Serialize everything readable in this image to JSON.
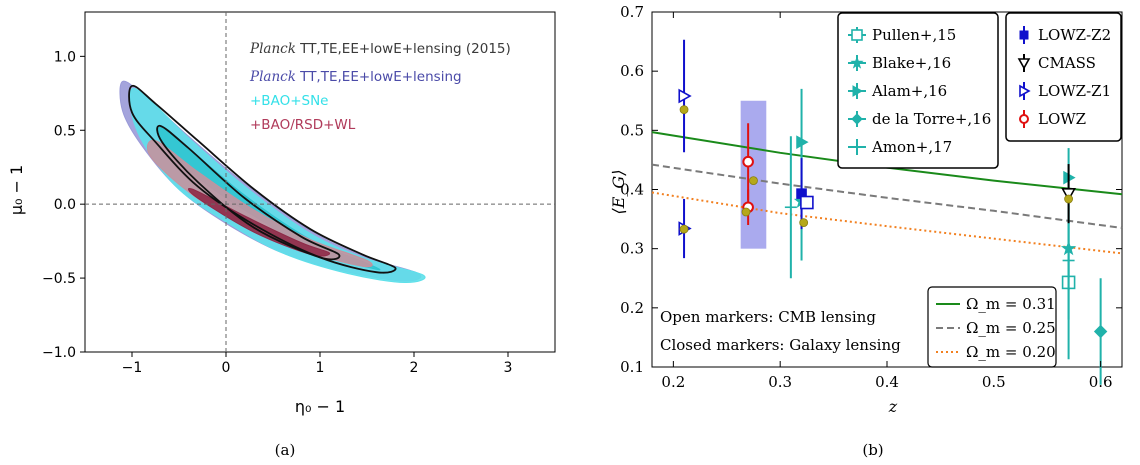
{
  "chart_data": [
    {
      "type": "contour",
      "panel_label": "(a)",
      "xlabel": "η₀ − 1",
      "ylabel": "μ₀ − 1",
      "xlim": [
        -1.5,
        3.5
      ],
      "ylim": [
        -1.0,
        1.3
      ],
      "xticks": [
        "−1",
        "0",
        "1",
        "2",
        "3"
      ],
      "yticks": [
        "−1.0",
        "−0.5",
        "0.0",
        "0.5",
        "1.0"
      ],
      "reference_lines": {
        "x": 0,
        "y": 0
      },
      "legend": [
        {
          "name_italic": "Planck",
          "name": " TT,TE,EE+lowE+lensing (2015)",
          "color": "#3a3a3a"
        },
        {
          "name_italic": "Planck",
          "name": " TT,TE,EE+lowE+lensing",
          "color": "#4b4ba8"
        },
        {
          "name": "+BAO+SNe",
          "color": "#33e0e8"
        },
        {
          "name": "+BAO/RSD+WL",
          "color": "#b03a5a"
        }
      ],
      "series": [
        {
          "name": "Planck TT,TE,EE+lowE+lensing",
          "color": "#9a9ad8",
          "level": "95%",
          "contour": [
            [
              -1.1,
              0.83
            ],
            [
              -0.85,
              0.72
            ],
            [
              -0.4,
              0.46
            ],
            [
              0.2,
              0.14
            ],
            [
              0.9,
              -0.18
            ],
            [
              1.5,
              -0.36
            ],
            [
              2.05,
              -0.47
            ],
            [
              1.9,
              -0.52
            ],
            [
              1.3,
              -0.46
            ],
            [
              0.6,
              -0.33
            ],
            [
              0.0,
              -0.13
            ],
            [
              -0.5,
              0.1
            ],
            [
              -0.9,
              0.4
            ],
            [
              -1.1,
              0.63
            ]
          ]
        },
        {
          "name": "+BAO+SNe",
          "color": "#5ee0ea",
          "level": "95%",
          "contour": [
            [
              -1.0,
              0.78
            ],
            [
              -0.8,
              0.7
            ],
            [
              -0.4,
              0.45
            ],
            [
              0.2,
              0.12
            ],
            [
              0.9,
              -0.2
            ],
            [
              1.5,
              -0.37
            ],
            [
              2.1,
              -0.48
            ],
            [
              1.9,
              -0.53
            ],
            [
              1.3,
              -0.47
            ],
            [
              0.6,
              -0.33
            ],
            [
              0.0,
              -0.12
            ],
            [
              -0.5,
              0.1
            ],
            [
              -0.85,
              0.38
            ],
            [
              -1.0,
              0.6
            ]
          ]
        },
        {
          "name": "+BAO+SNe",
          "color": "#2fc4d0",
          "level": "68%",
          "contour": [
            [
              -0.7,
              0.52
            ],
            [
              -0.4,
              0.38
            ],
            [
              0.2,
              0.06
            ],
            [
              0.9,
              -0.24
            ],
            [
              1.5,
              -0.4
            ],
            [
              1.6,
              -0.44
            ],
            [
              1.0,
              -0.33
            ],
            [
              0.3,
              -0.08
            ],
            [
              -0.3,
              0.18
            ],
            [
              -0.65,
              0.4
            ]
          ]
        },
        {
          "name": "+BAO/RSD+WL",
          "color": "#c4929e",
          "level": "95%",
          "contour": [
            [
              -0.75,
              0.43
            ],
            [
              -0.3,
              0.22
            ],
            [
              0.3,
              -0.04
            ],
            [
              0.9,
              -0.24
            ],
            [
              1.5,
              -0.38
            ],
            [
              1.45,
              -0.42
            ],
            [
              0.8,
              -0.31
            ],
            [
              0.2,
              -0.14
            ],
            [
              -0.35,
              0.06
            ],
            [
              -0.8,
              0.32
            ]
          ]
        },
        {
          "name": "+BAO/RSD+WL",
          "color": "#8e2a48",
          "level": "68%",
          "contour": [
            [
              -0.35,
              0.1
            ],
            [
              0.2,
              -0.08
            ],
            [
              0.8,
              -0.26
            ],
            [
              1.1,
              -0.33
            ],
            [
              0.9,
              -0.34
            ],
            [
              0.3,
              -0.19
            ],
            [
              -0.3,
              0.04
            ]
          ]
        },
        {
          "name": "Planck TT,TE,EE+lowE+lensing (2015)",
          "color": "#111111",
          "level": "95%",
          "contour": [
            [
              -1.0,
              0.8
            ],
            [
              -0.75,
              0.68
            ],
            [
              -0.3,
              0.43
            ],
            [
              0.3,
              0.1
            ],
            [
              0.9,
              -0.17
            ],
            [
              1.45,
              -0.34
            ],
            [
              1.8,
              -0.43
            ],
            [
              1.6,
              -0.46
            ],
            [
              1.0,
              -0.36
            ],
            [
              0.3,
              -0.14
            ],
            [
              -0.3,
              0.12
            ],
            [
              -0.75,
              0.42
            ],
            [
              -1.0,
              0.62
            ]
          ]
        },
        {
          "name": "Planck TT,TE,EE+lowE+lensing (2015)",
          "color": "#111111",
          "level": "68%",
          "contour": [
            [
              -0.7,
              0.53
            ],
            [
              -0.4,
              0.38
            ],
            [
              0.2,
              0.04
            ],
            [
              0.8,
              -0.22
            ],
            [
              1.2,
              -0.34
            ],
            [
              1.0,
              -0.36
            ],
            [
              0.3,
              -0.16
            ],
            [
              -0.3,
              0.15
            ],
            [
              -0.68,
              0.42
            ]
          ]
        }
      ]
    },
    {
      "type": "scatter",
      "panel_label": "(b)",
      "xlabel": "z",
      "ylabel": "⟨E_G⟩",
      "xlim": [
        0.18,
        0.62
      ],
      "ylim": [
        0.1,
        0.7
      ],
      "xticks": [
        0.2,
        0.3,
        0.4,
        0.5,
        0.6
      ],
      "yticks": [
        0.1,
        0.2,
        0.3,
        0.4,
        0.5,
        0.6,
        0.7
      ],
      "band": {
        "x": [
          0.263,
          0.287
        ],
        "y": [
          0.3,
          0.55
        ],
        "color": "#aaaaee"
      },
      "theory_lines": [
        {
          "name": "Ω_m = 0.31",
          "style": "solid",
          "color": "#1a8a1a",
          "x": [
            0.18,
            0.3,
            0.4,
            0.5,
            0.62
          ],
          "y": [
            0.497,
            0.462,
            0.437,
            0.415,
            0.392
          ]
        },
        {
          "name": "Ω_m = 0.25",
          "style": "dashed",
          "color": "#7a7a7a",
          "x": [
            0.18,
            0.3,
            0.4,
            0.5,
            0.62
          ],
          "y": [
            0.442,
            0.41,
            0.386,
            0.364,
            0.335
          ]
        },
        {
          "name": "Ω_m = 0.20",
          "style": "dotted",
          "color": "#f28020",
          "x": [
            0.18,
            0.3,
            0.4,
            0.5,
            0.62
          ],
          "y": [
            0.395,
            0.36,
            0.338,
            0.317,
            0.292
          ]
        }
      ],
      "series": [
        {
          "name": "Pullen+,15",
          "marker": "square-open",
          "color": "#20b2aa",
          "points": [
            [
              0.57,
              0.243,
              0.13
            ]
          ]
        },
        {
          "name": "Blake+,16",
          "marker": "star",
          "color": "#20b2aa",
          "points": [
            [
              0.32,
              0.38,
              0.1
            ],
            [
              0.57,
              0.3,
              0.07
            ]
          ]
        },
        {
          "name": "Alam+,16",
          "marker": "tri-right",
          "color": "#20b2aa",
          "points": [
            [
              0.32,
              0.48,
              0.09
            ],
            [
              0.57,
              0.42,
              0.05
            ]
          ]
        },
        {
          "name": "de la Torre+,16",
          "marker": "diamond",
          "color": "#20b2aa",
          "points": [
            [
              0.6,
              0.16,
              0.09
            ]
          ]
        },
        {
          "name": "Amon+,17",
          "marker": "tick",
          "color": "#20b2aa",
          "points": [
            [
              0.31,
              0.37,
              0.12
            ],
            [
              0.57,
              0.28,
              0.1
            ]
          ]
        },
        {
          "name": "LOWZ-Z2",
          "marker": "square",
          "color": "#1010cc",
          "points": [
            [
              0.32,
              0.393,
              0.06
            ]
          ]
        },
        {
          "name": "CMASS",
          "marker": "triangle-down-open",
          "color": "#000000",
          "points": [
            [
              0.57,
              0.393,
              0.05
            ]
          ]
        },
        {
          "name": "LOWZ-Z1",
          "marker": "tri-right-open",
          "color": "#1010cc",
          "points": [
            [
              0.21,
              0.558,
              0.095
            ],
            [
              0.21,
              0.334,
              0.05
            ]
          ]
        },
        {
          "name": "LOWZ",
          "marker": "circle",
          "color": "#e01010",
          "points": [
            [
              0.27,
              0.447,
              0.065
            ],
            [
              0.27,
              0.37,
              0.03
            ]
          ]
        },
        {
          "name": "",
          "marker": "square-open",
          "color": "#1010cc",
          "points": [
            [
              0.325,
              0.378,
              0.0
            ]
          ]
        }
      ],
      "yellow_markers": [
        [
          0.21,
          0.535
        ],
        [
          0.21,
          0.333
        ],
        [
          0.268,
          0.362
        ],
        [
          0.275,
          0.415
        ],
        [
          0.322,
          0.344
        ],
        [
          0.57,
          0.384
        ]
      ],
      "legend_left": [
        "Pullen+,15",
        "Blake+,16",
        "Alam+,16",
        "de la Torre+,16",
        "Amon+,17"
      ],
      "legend_right": [
        "LOWZ-Z2",
        "CMASS",
        "LOWZ-Z1",
        "LOWZ"
      ],
      "legend_theory": [
        "Ω_m = 0.31",
        "Ω_m = 0.25",
        "Ω_m = 0.20"
      ],
      "annotations": [
        "Open markers: CMB lensing",
        "Closed markers: Galaxy lensing"
      ]
    }
  ]
}
